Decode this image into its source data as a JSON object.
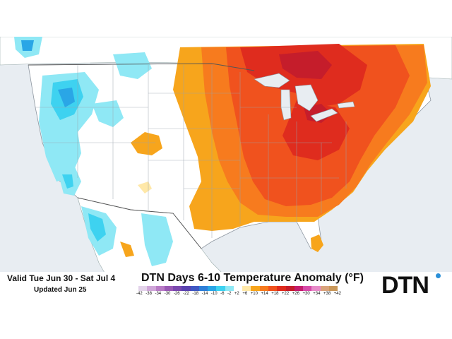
{
  "header": {
    "valid_text": "Valid Tue Jun 30 - Sat Jul 4",
    "updated_text": "Updated Jun 25",
    "title": "DTN Days 6-10 Temperature Anomaly (°F)"
  },
  "legend": {
    "ticks": [
      "-42",
      "-38",
      "-34",
      "-30",
      "-26",
      "-22",
      "-18",
      "-14",
      "-10",
      "-6",
      "-2",
      "+2",
      "+6",
      "+10",
      "+14",
      "+18",
      "+22",
      "+26",
      "+30",
      "+34",
      "+38",
      "+42"
    ],
    "colors": [
      "#e3d3ea",
      "#cfa6d8",
      "#b97cc6",
      "#9a5ab5",
      "#7b49ae",
      "#5a43b0",
      "#3f58c3",
      "#2f7fd8",
      "#2aa6e6",
      "#3ed2f0",
      "#8fe8f5",
      "#ffffff",
      "#ffe8a8",
      "#f7a51c",
      "#f77b1e",
      "#f0521e",
      "#df2c1e",
      "#c51d2b",
      "#c31d6d",
      "#d64aa8",
      "#e78bc9",
      "#d9a37c",
      "#c9985a"
    ]
  },
  "logo": {
    "text": "DTN"
  }
}
